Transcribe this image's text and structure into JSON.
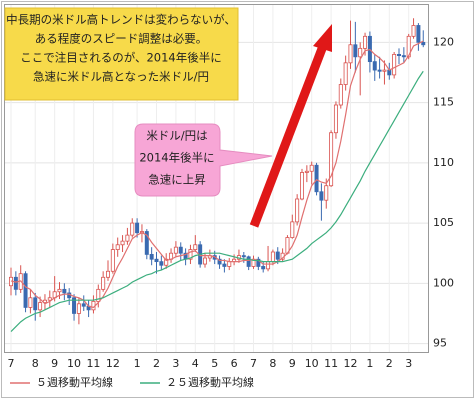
{
  "chart_data": {
    "type": "candlestick",
    "categories": [
      "7",
      null,
      null,
      null,
      null,
      "8",
      null,
      null,
      null,
      "9",
      null,
      null,
      null,
      "10",
      null,
      null,
      null,
      "11",
      null,
      null,
      null,
      "12",
      null,
      null,
      null,
      null,
      "1",
      null,
      null,
      null,
      "2",
      null,
      null,
      null,
      "3",
      null,
      null,
      null,
      "4",
      null,
      null,
      null,
      "5",
      null,
      null,
      null,
      "6",
      null,
      null,
      null,
      "7",
      null,
      null,
      null,
      "8",
      null,
      null,
      null,
      "9",
      null,
      null,
      null,
      "10",
      null,
      null,
      null,
      "11",
      null,
      null,
      null,
      "12",
      null,
      null,
      null,
      "1",
      null,
      null,
      null,
      "2",
      null,
      null,
      null,
      "3",
      null,
      null,
      null
    ],
    "open": [
      99.8,
      100.5,
      99.5,
      100.8,
      98.0,
      98.8,
      97.8,
      98.4,
      98.6,
      98.8,
      99.3,
      99.5,
      99.2,
      98.8,
      97.5,
      98.3,
      98.1,
      97.8,
      98.5,
      99.5,
      100.5,
      101.0,
      102.8,
      103.2,
      103.5,
      104.0,
      105.0,
      104.2,
      104.3,
      102.4,
      102.0,
      101.8,
      101.5,
      102.0,
      102.5,
      103.0,
      102.5,
      102.0,
      102.8,
      103.2,
      101.6,
      102.1,
      102.3,
      102.0,
      101.6,
      101.4,
      101.8,
      102.0,
      102.3,
      102.2,
      101.4,
      102.0,
      101.4,
      101.2,
      101.8,
      102.6,
      102.0,
      102.5,
      103.8,
      105.1,
      107.0,
      109.2,
      109.3,
      109.8,
      107.6,
      106.9,
      108.1,
      112.5,
      114.8,
      116.5,
      118.3,
      119.8,
      118.8,
      119.5,
      120.5,
      118.4,
      117.7,
      117.6,
      117.7,
      117.3,
      119.0,
      118.9,
      118.8,
      120.5,
      121.4,
      120.0
    ],
    "high": [
      101.3,
      101.0,
      101.5,
      101.0,
      99.5,
      99.2,
      98.9,
      99.1,
      99.4,
      100.6,
      100.1,
      100.0,
      99.6,
      99.1,
      98.8,
      99.0,
      98.6,
      99.0,
      99.9,
      101.0,
      101.9,
      103.3,
      103.8,
      104.0,
      104.6,
      105.4,
      105.4,
      104.9,
      104.5,
      103.0,
      102.6,
      102.3,
      102.5,
      102.9,
      103.5,
      103.4,
      102.9,
      103.2,
      104.0,
      103.5,
      102.5,
      102.8,
      102.7,
      102.3,
      102.0,
      102.1,
      102.4,
      102.8,
      102.6,
      102.3,
      102.3,
      102.2,
      101.8,
      103.1,
      102.8,
      103.0,
      102.9,
      104.0,
      105.7,
      107.4,
      109.5,
      109.8,
      110.1,
      110.0,
      108.3,
      108.7,
      112.7,
      115.1,
      117.0,
      118.9,
      121.8,
      121.7,
      120.0,
      120.8,
      120.9,
      119.0,
      118.8,
      118.5,
      118.3,
      119.2,
      119.5,
      119.6,
      120.7,
      122.0,
      121.6,
      121.0
    ],
    "low": [
      99.0,
      99.0,
      99.2,
      97.6,
      97.5,
      96.9,
      97.2,
      97.8,
      98.0,
      98.5,
      98.7,
      98.6,
      98.2,
      96.9,
      96.6,
      97.7,
      97.2,
      97.5,
      98.0,
      99.3,
      100.2,
      100.8,
      102.2,
      102.6,
      103.2,
      103.8,
      103.8,
      103.4,
      102.0,
      101.5,
      100.8,
      101.1,
      101.2,
      101.7,
      102.2,
      101.9,
      101.5,
      101.6,
      102.6,
      101.3,
      101.3,
      101.8,
      101.6,
      101.2,
      100.9,
      101.1,
      101.5,
      101.7,
      101.7,
      101.1,
      101.2,
      101.1,
      100.9,
      101.0,
      101.5,
      101.6,
      101.8,
      102.4,
      103.7,
      104.8,
      106.9,
      108.4,
      108.2,
      107.3,
      105.2,
      106.2,
      108.0,
      112.0,
      114.5,
      116.0,
      117.8,
      117.5,
      115.6,
      118.9,
      117.5,
      116.8,
      117.0,
      116.5,
      116.9,
      117.0,
      118.2,
      118.3,
      118.6,
      120.3,
      119.3,
      119.6
    ],
    "close": [
      100.5,
      99.5,
      100.8,
      98.0,
      98.8,
      97.8,
      98.4,
      98.6,
      98.8,
      99.3,
      99.5,
      99.2,
      98.8,
      97.5,
      98.3,
      98.1,
      97.8,
      98.5,
      99.5,
      100.5,
      101.0,
      102.8,
      103.2,
      103.5,
      104.0,
      105.0,
      104.2,
      104.3,
      102.4,
      102.0,
      101.8,
      101.5,
      102.0,
      102.5,
      103.0,
      102.5,
      102.0,
      102.8,
      103.2,
      101.6,
      102.1,
      102.3,
      102.0,
      101.6,
      101.4,
      101.8,
      102.0,
      102.3,
      102.2,
      101.4,
      102.0,
      101.4,
      101.2,
      101.8,
      102.6,
      102.0,
      102.5,
      103.8,
      105.1,
      107.0,
      109.2,
      109.3,
      109.8,
      107.6,
      106.9,
      108.1,
      112.5,
      114.8,
      116.5,
      118.3,
      119.8,
      118.8,
      119.5,
      120.5,
      118.4,
      117.7,
      117.6,
      117.7,
      117.3,
      119.0,
      118.9,
      118.8,
      120.5,
      121.4,
      120.0,
      119.8
    ],
    "up_color": "#d9534f",
    "down_color": "#3a6ab0",
    "series": [
      {
        "name": "５週移動平均線",
        "color": "#e07070",
        "values": [
          100.2,
          100.1,
          100.2,
          99.7,
          99.5,
          99.0,
          98.7,
          98.3,
          98.5,
          98.8,
          99.0,
          99.1,
          99.1,
          98.9,
          98.8,
          98.6,
          98.1,
          98.0,
          98.4,
          98.9,
          99.6,
          100.5,
          101.4,
          102.1,
          102.9,
          103.7,
          104.0,
          104.2,
          104.0,
          103.4,
          102.9,
          102.4,
          101.9,
          102.0,
          102.2,
          102.3,
          102.4,
          102.6,
          102.7,
          102.3,
          102.3,
          102.3,
          102.2,
          101.9,
          101.9,
          101.8,
          101.8,
          101.8,
          101.9,
          101.9,
          102.0,
          101.9,
          101.6,
          101.6,
          101.6,
          101.8,
          102.1,
          102.5,
          103.1,
          104.0,
          105.5,
          106.9,
          108.1,
          108.6,
          108.4,
          108.3,
          108.9,
          110.0,
          111.8,
          114.0,
          116.4,
          117.6,
          118.6,
          119.3,
          119.4,
          119.0,
          118.7,
          118.3,
          117.7,
          117.9,
          118.1,
          118.3,
          118.9,
          119.7,
          119.9,
          120.1
        ]
      },
      {
        "name": "２５週移動平均線",
        "color": "#3cae7e",
        "values": [
          96.0,
          96.4,
          96.8,
          97.1,
          97.3,
          97.5,
          97.6,
          97.8,
          98.0,
          98.2,
          98.4,
          98.5,
          98.6,
          98.6,
          98.6,
          98.6,
          98.6,
          98.6,
          98.7,
          98.8,
          99.0,
          99.2,
          99.4,
          99.6,
          99.8,
          100.1,
          100.3,
          100.5,
          100.7,
          100.8,
          101.0,
          101.1,
          101.3,
          101.5,
          101.7,
          101.9,
          102.0,
          102.1,
          102.3,
          102.4,
          102.5,
          102.5,
          102.5,
          102.5,
          102.4,
          102.3,
          102.2,
          102.1,
          102.0,
          102.0,
          101.9,
          101.9,
          101.8,
          101.8,
          101.8,
          101.8,
          101.8,
          101.9,
          102.0,
          102.3,
          102.6,
          102.9,
          103.3,
          103.6,
          103.9,
          104.2,
          104.6,
          105.1,
          105.7,
          106.4,
          107.1,
          107.8,
          108.5,
          109.3,
          110.0,
          110.7,
          111.4,
          112.1,
          112.8,
          113.5,
          114.2,
          114.9,
          115.6,
          116.3,
          117.0,
          117.6
        ]
      }
    ],
    "ylim": [
      94.3,
      123.1
    ],
    "yticks": [
      95,
      100,
      105,
      110,
      115,
      120
    ],
    "grid": true,
    "annotations": [
      {
        "lines": [
          "中長期の米ドル高トレンドは変わらないが、",
          "ある程度のスピード調整は必要。",
          "ここで注目されるのが、2014年後半に",
          "急速に米ドル高となった米ドル/円"
        ]
      },
      {
        "lines": [
          "米ドル/円は",
          "2014年後半に",
          "急速に上昇"
        ]
      }
    ]
  }
}
